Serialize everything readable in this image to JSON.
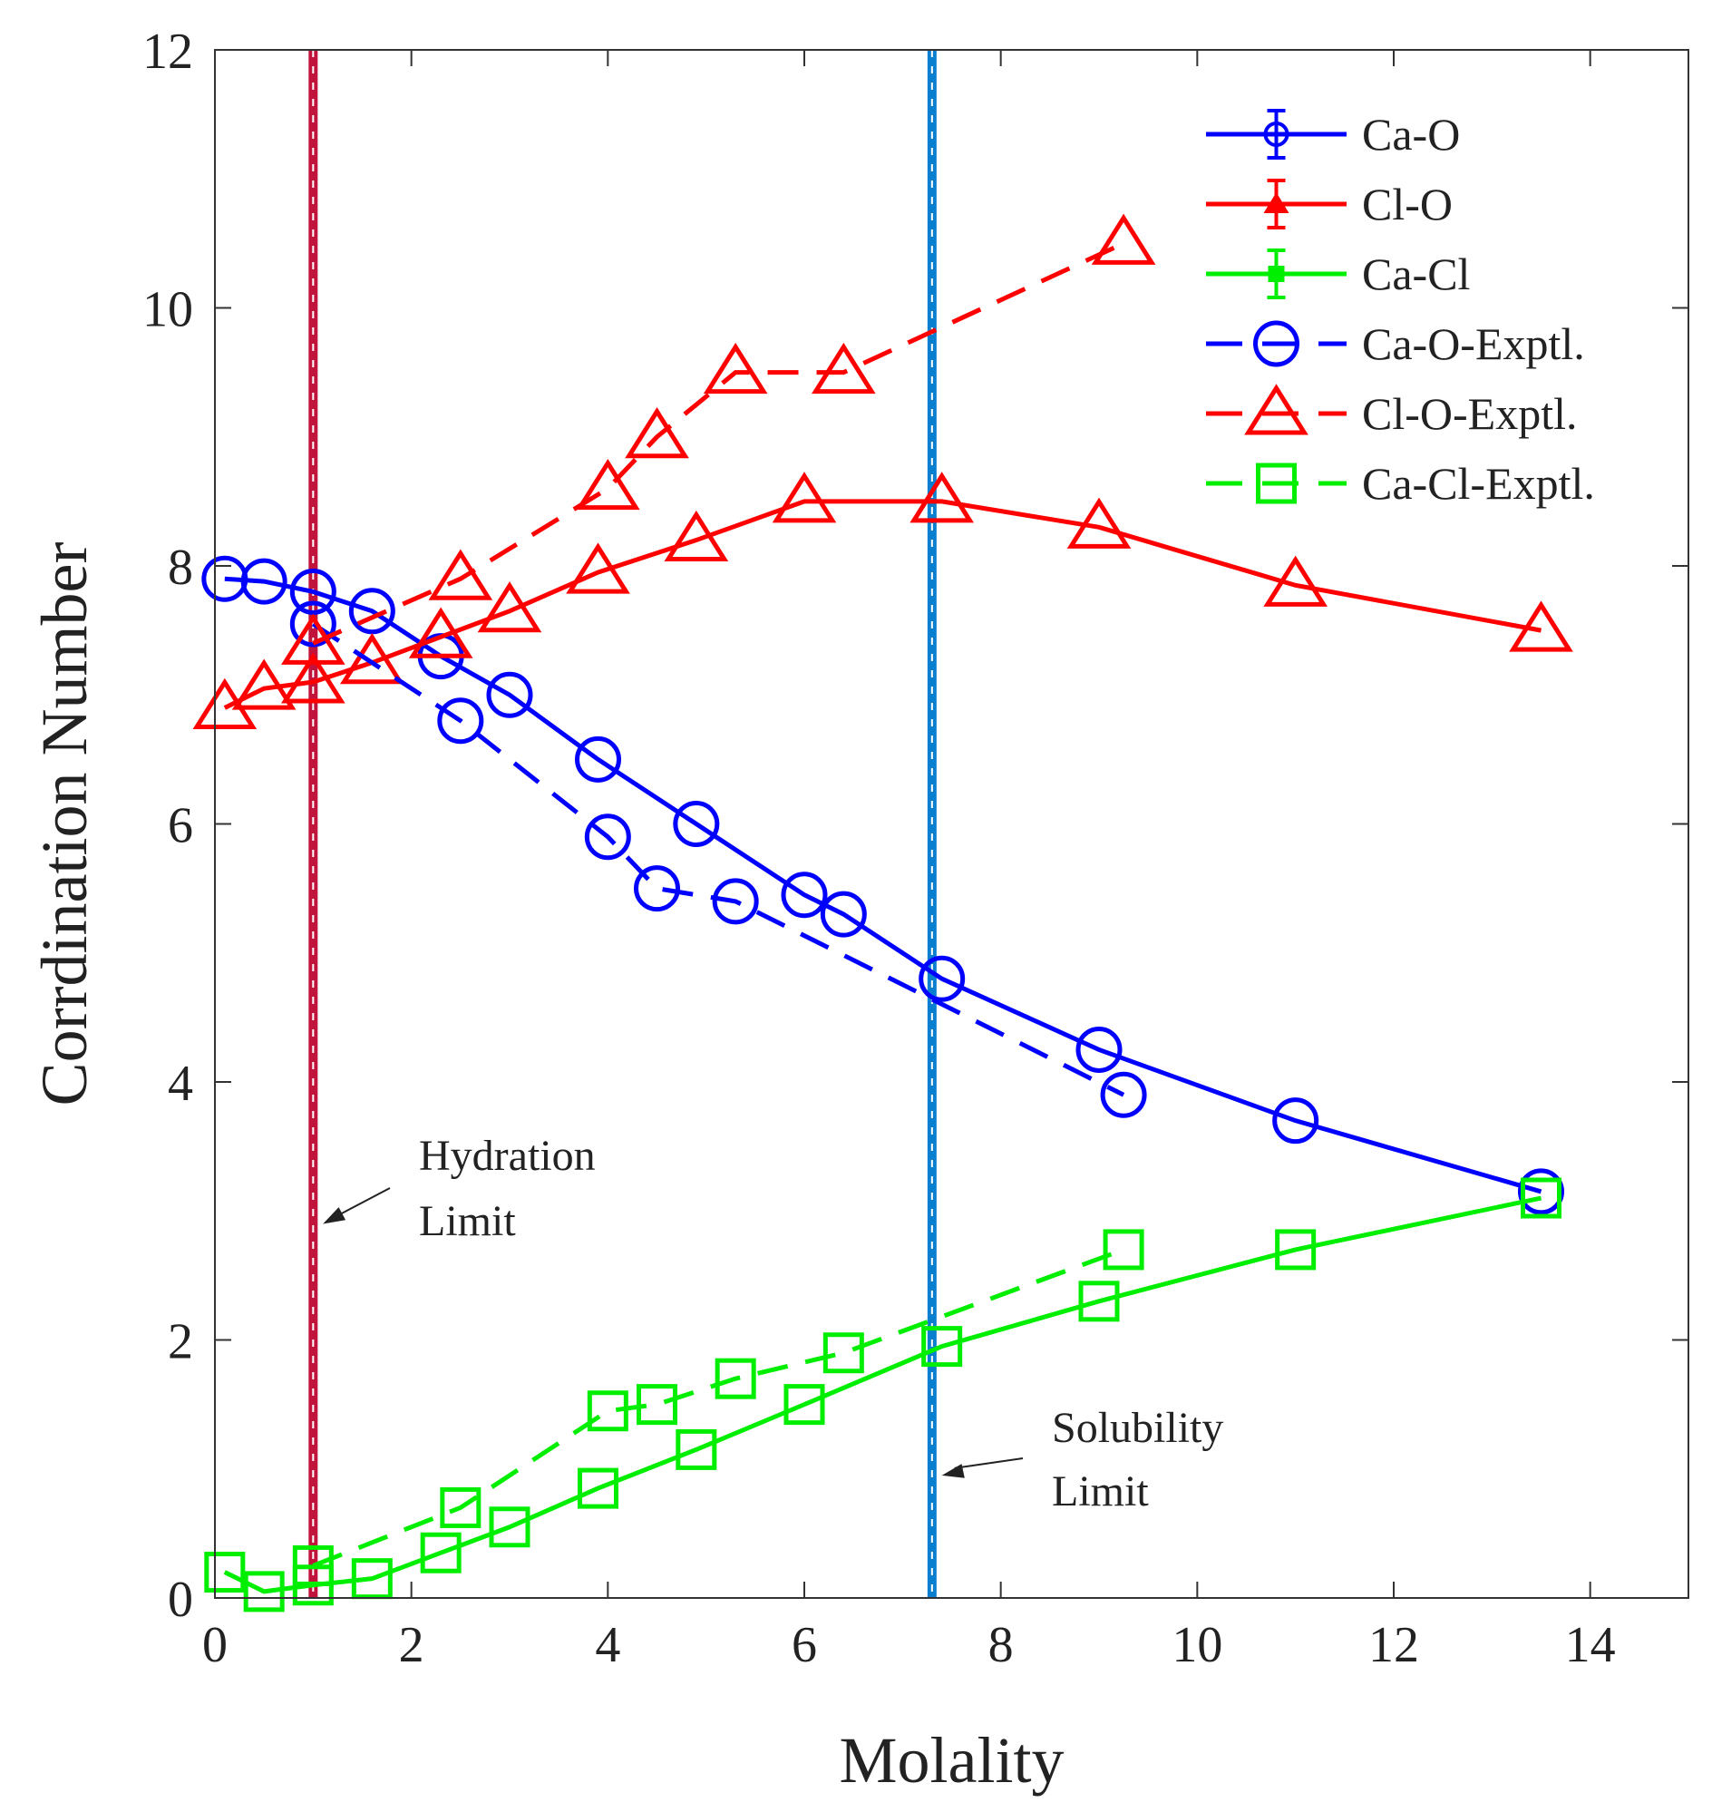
{
  "chart_data": {
    "type": "line",
    "xlabel": "Molality",
    "ylabel": "Corrdination Number",
    "xlim": [
      0,
      15
    ],
    "ylim": [
      0,
      12
    ],
    "xticks": [
      "0",
      "2",
      "4",
      "6",
      "8",
      "10",
      "12",
      "14"
    ],
    "yticks": [
      "0",
      "2",
      "4",
      "6",
      "8",
      "10",
      "12"
    ],
    "grid": false,
    "legend_position": "top-right",
    "series": [
      {
        "name": "Ca-O",
        "color": "#0000ff",
        "linestyle": "solid",
        "marker": "circle",
        "x": [
          0.1,
          0.5,
          1.0,
          1.6,
          2.3,
          3.0,
          3.9,
          4.9,
          6.0,
          6.4,
          7.4,
          9.0,
          11.0,
          13.5
        ],
        "y": [
          7.9,
          7.88,
          7.8,
          7.65,
          7.3,
          7.0,
          6.5,
          6.0,
          5.45,
          5.3,
          4.8,
          4.25,
          3.7,
          3.15
        ]
      },
      {
        "name": "Cl-O",
        "color": "#ff0000",
        "linestyle": "solid",
        "marker": "triangle",
        "x": [
          0.1,
          0.5,
          1.0,
          1.6,
          2.3,
          3.0,
          3.9,
          4.9,
          6.0,
          7.4,
          9.0,
          11.0,
          13.5
        ],
        "y": [
          6.9,
          7.05,
          7.1,
          7.25,
          7.45,
          7.65,
          7.95,
          8.2,
          8.5,
          8.5,
          8.3,
          7.85,
          7.5
        ]
      },
      {
        "name": "Ca-Cl",
        "color": "#00ee00",
        "linestyle": "solid",
        "marker": "square",
        "x": [
          0.1,
          0.5,
          1.0,
          1.6,
          2.3,
          3.0,
          3.9,
          4.9,
          6.0,
          7.4,
          9.0,
          11.0,
          13.5
        ],
        "y": [
          0.2,
          0.05,
          0.1,
          0.15,
          0.35,
          0.55,
          0.85,
          1.15,
          1.5,
          1.95,
          2.3,
          2.7,
          3.1
        ]
      },
      {
        "name": "Ca-O-Exptl.",
        "color": "#0000ff",
        "linestyle": "dashed",
        "marker": "circle",
        "x": [
          1.0,
          2.5,
          4.0,
          4.5,
          5.3,
          9.25
        ],
        "y": [
          7.55,
          6.8,
          5.9,
          5.5,
          5.4,
          3.9
        ]
      },
      {
        "name": "Cl-O-Exptl.",
        "color": "#ff0000",
        "linestyle": "dashed",
        "marker": "triangle",
        "x": [
          1.0,
          2.5,
          4.0,
          4.5,
          5.3,
          6.4,
          9.25
        ],
        "y": [
          7.4,
          7.9,
          8.6,
          9.0,
          9.5,
          9.5,
          10.5
        ]
      },
      {
        "name": "Ca-Cl-Exptl.",
        "color": "#00ee00",
        "linestyle": "dashed",
        "marker": "square",
        "x": [
          1.0,
          2.5,
          4.0,
          4.5,
          5.3,
          6.4,
          9.25
        ],
        "y": [
          0.25,
          0.7,
          1.45,
          1.5,
          1.7,
          1.9,
          2.7
        ]
      }
    ],
    "reference_lines": [
      {
        "name": "Hydration Limit",
        "x": 1.0,
        "color": "#c0143c"
      },
      {
        "name": "Solubility Limit",
        "x": 7.3,
        "color": "#0a7fd0"
      }
    ],
    "annotations": [
      {
        "line1": "Hydration",
        "line2": "Limit",
        "arrow_to_x": 1.1,
        "arrow_to_y": 2.9
      },
      {
        "line1": "Solubility",
        "line2": "Limit",
        "arrow_to_x": 7.4,
        "arrow_to_y": 0.95
      }
    ]
  }
}
